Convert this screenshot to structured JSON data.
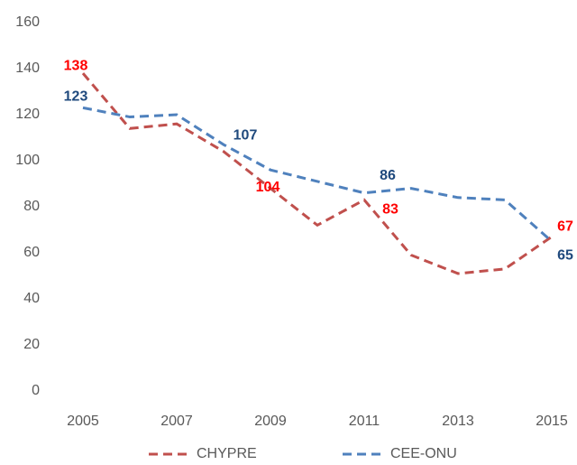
{
  "chart_data": {
    "type": "line",
    "x": [
      2005,
      2006,
      2007,
      2008,
      2009,
      2010,
      2011,
      2012,
      2013,
      2014,
      2015
    ],
    "xlim": [
      2005,
      2015
    ],
    "xticks": [
      2005,
      2007,
      2009,
      2011,
      2013,
      2015
    ],
    "ylim": [
      0,
      160
    ],
    "yticks": [
      0,
      20,
      40,
      60,
      80,
      100,
      120,
      140,
      160
    ],
    "grid": false,
    "legend": "bottom",
    "series": [
      {
        "name": "CHYPRE",
        "color": "#c0504d",
        "label_color": "#ff0000",
        "values": [
          138,
          114,
          116,
          104,
          88,
          72,
          83,
          59,
          51,
          53,
          67
        ],
        "value_labels": [
          "138",
          null,
          null,
          "104",
          null,
          null,
          "83",
          null,
          null,
          null,
          "67"
        ]
      },
      {
        "name": "CEE-ONU",
        "color": "#4f81bd",
        "label_color": "#1f497d",
        "values": [
          123,
          119,
          120,
          107,
          96,
          91,
          86,
          88,
          84,
          83,
          65
        ],
        "value_labels": [
          "123",
          null,
          null,
          "107",
          null,
          null,
          "86",
          null,
          null,
          null,
          "65"
        ]
      }
    ]
  }
}
